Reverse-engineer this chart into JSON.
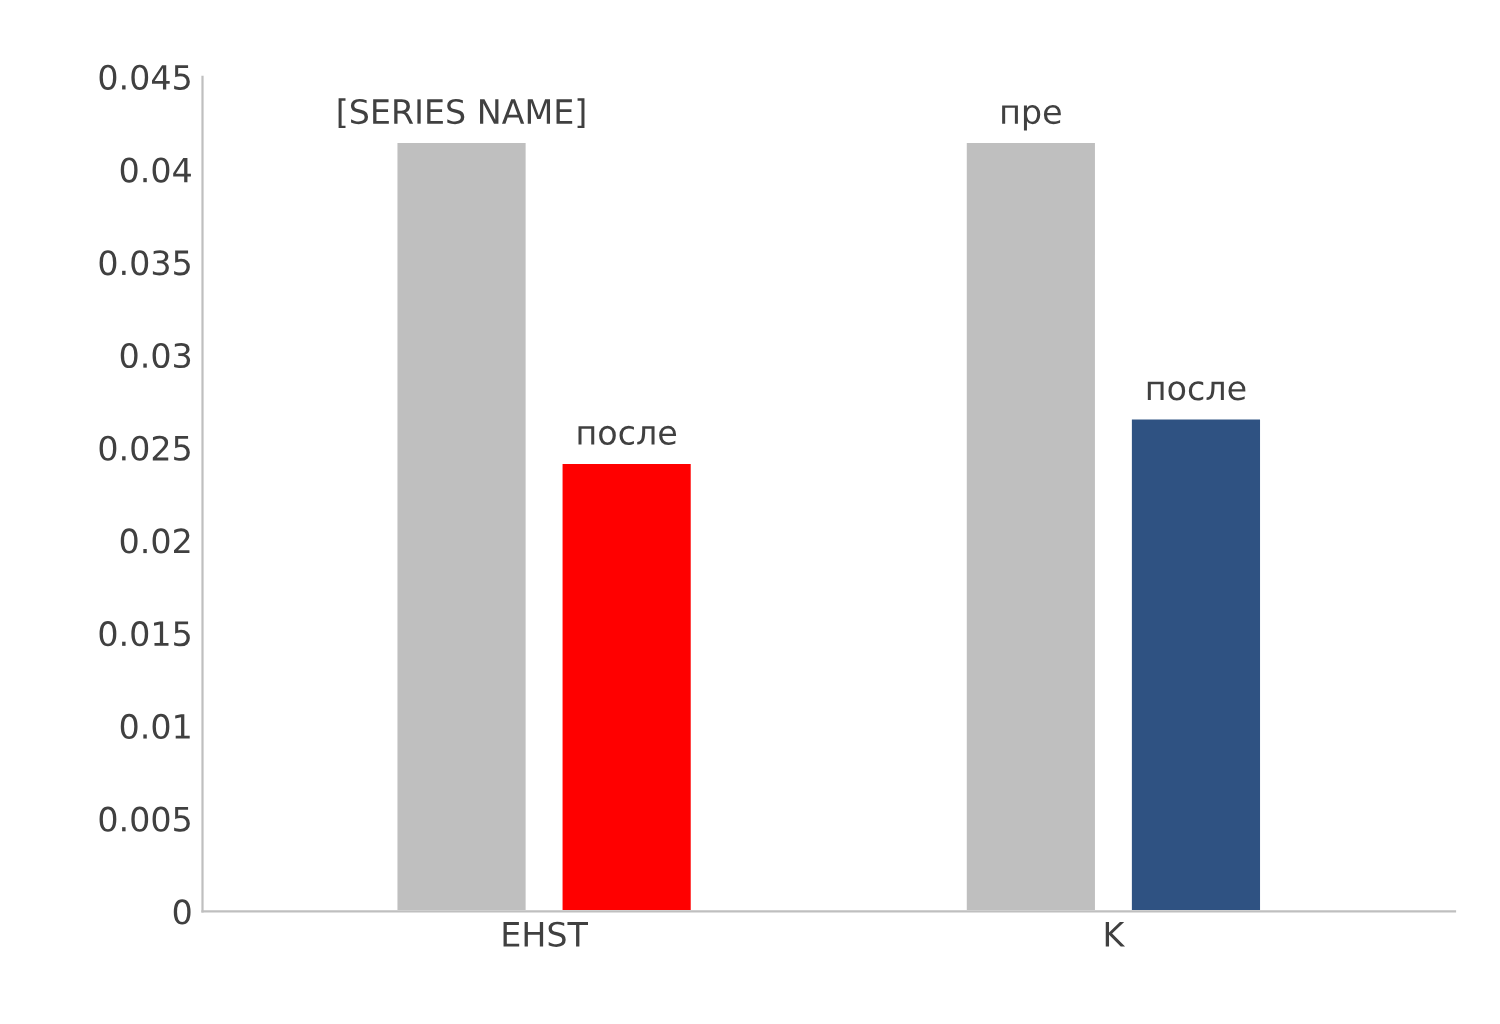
{
  "chart_data": {
    "type": "bar",
    "categories": [
      "EHST",
      "K"
    ],
    "series": [
      {
        "colors": [
          "#bfbfbf",
          "#bfbfbf"
        ],
        "values": [
          0.0415,
          0.0415
        ],
        "value_labels": [
          "[SERIES NAME]",
          "пре"
        ]
      },
      {
        "colors": [
          "#ff0000",
          "#2f5282"
        ],
        "values": [
          0.0242,
          0.0266
        ],
        "value_labels": [
          "после",
          "после"
        ]
      }
    ],
    "ylim": [
      0,
      0.045
    ],
    "yticks": [
      0,
      0.005,
      0.01,
      0.015,
      0.02,
      0.025,
      0.03,
      0.035,
      0.04,
      0.045
    ],
    "grid": false,
    "legend": false
  }
}
